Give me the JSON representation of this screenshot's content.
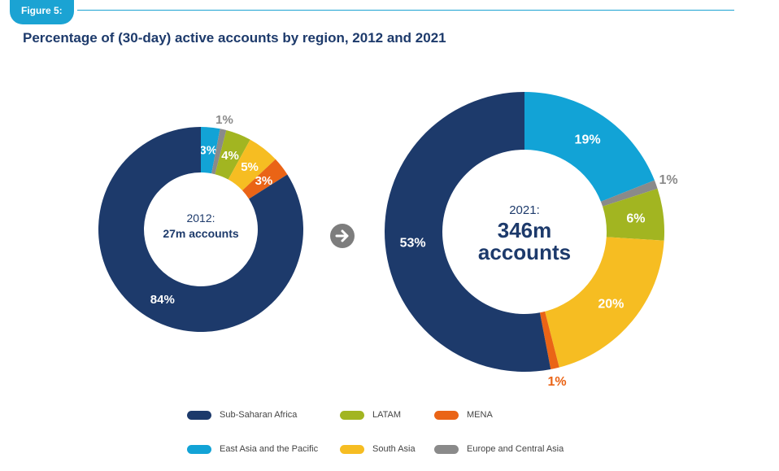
{
  "figure_label": "Figure 5:",
  "title": "Percentage of (30-day) active accounts by region, 2012 and 2021",
  "colors": {
    "Sub-Saharan Africa": "#1d3a6b",
    "East Asia and the Pacific": "#12a3d6",
    "LATAM": "#a2b521",
    "South Asia": "#f6bd22",
    "MENA": "#ea6416",
    "Europe and Central Asia": "#8a8a8a",
    "arrow": "#7d7d7d"
  },
  "chart_data": [
    {
      "type": "pie",
      "variant": "donut",
      "center_line1": "2012:",
      "center_line2": "27m accounts",
      "slices": [
        {
          "region": "East Asia and the Pacific",
          "value": 3,
          "label": "3%"
        },
        {
          "region": "Europe and Central Asia",
          "value": 1,
          "label": "1%"
        },
        {
          "region": "LATAM",
          "value": 4,
          "label": "4%"
        },
        {
          "region": "South Asia",
          "value": 5,
          "label": "5%"
        },
        {
          "region": "MENA",
          "value": 3,
          "label": "3%"
        },
        {
          "region": "Sub-Saharan Africa",
          "value": 84,
          "label": "84%"
        }
      ]
    },
    {
      "type": "pie",
      "variant": "donut",
      "center_line1": "2021:",
      "center_line2": "346m",
      "center_line3": "accounts",
      "slices": [
        {
          "region": "East Asia and the Pacific",
          "value": 19,
          "label": "19%"
        },
        {
          "region": "Europe and Central Asia",
          "value": 1,
          "label": "1%"
        },
        {
          "region": "LATAM",
          "value": 6,
          "label": "6%"
        },
        {
          "region": "South Asia",
          "value": 20,
          "label": "20%"
        },
        {
          "region": "MENA",
          "value": 1,
          "label": "1%"
        },
        {
          "region": "Sub-Saharan Africa",
          "value": 53,
          "label": "53%"
        }
      ]
    }
  ],
  "legend": [
    {
      "label": "Sub-Saharan Africa"
    },
    {
      "label": "LATAM"
    },
    {
      "label": "MENA"
    },
    {
      "label": "East Asia and the Pacific"
    },
    {
      "label": "South Asia"
    },
    {
      "label": "Europe and Central Asia"
    }
  ]
}
